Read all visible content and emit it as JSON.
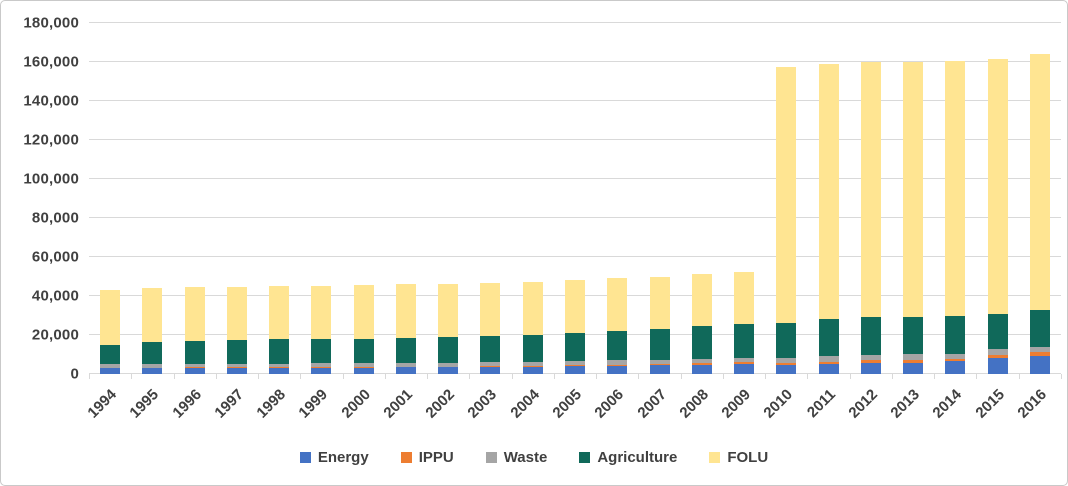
{
  "chart_data": {
    "type": "bar",
    "stacked": true,
    "title": "",
    "xlabel": "",
    "ylabel": "",
    "ylim": [
      0,
      180000
    ],
    "ytick_step": 20000,
    "ytick_labels": [
      "0",
      "20,000",
      "40,000",
      "60,000",
      "80,000",
      "100,000",
      "120,000",
      "140,000",
      "160,000",
      "180,000"
    ],
    "grid": "horizontal",
    "legend_position": "bottom",
    "categories": [
      "1994",
      "1995",
      "1996",
      "1997",
      "1998",
      "1999",
      "2000",
      "2001",
      "2002",
      "2003",
      "2004",
      "2005",
      "2006",
      "2007",
      "2008",
      "2009",
      "2010",
      "2011",
      "2012",
      "2013",
      "2014",
      "2015",
      "2016"
    ],
    "series": [
      {
        "name": "Energy",
        "color": "#4472C4",
        "values": [
          3100,
          3100,
          3100,
          3200,
          3200,
          3200,
          3300,
          3400,
          3400,
          3500,
          3600,
          3900,
          4100,
          4600,
          4600,
          5000,
          4500,
          5000,
          5900,
          5800,
          6600,
          8000,
          9200
        ]
      },
      {
        "name": "IPPU",
        "color": "#ED7D31",
        "values": [
          200,
          200,
          250,
          250,
          300,
          300,
          300,
          350,
          400,
          400,
          450,
          500,
          600,
          700,
          1000,
          1000,
          1000,
          1200,
          1300,
          1400,
          1200,
          1700,
          2200
        ]
      },
      {
        "name": "Waste",
        "color": "#A5A5A5",
        "values": [
          1700,
          1750,
          1800,
          1800,
          1850,
          1900,
          1900,
          1950,
          2000,
          2100,
          2250,
          2300,
          2300,
          2100,
          2100,
          2350,
          2900,
          3000,
          2600,
          2900,
          2700,
          3000,
          2400
        ]
      },
      {
        "name": "Agriculture",
        "color": "#10695A",
        "values": [
          10000,
          11600,
          12000,
          12200,
          12400,
          12500,
          12600,
          12700,
          13000,
          13700,
          13600,
          14400,
          15100,
          15900,
          16800,
          17350,
          17900,
          18800,
          19300,
          19200,
          19200,
          17900,
          18900
        ]
      },
      {
        "name": "FOLU",
        "color": "#FFE592",
        "values": [
          28100,
          27700,
          27500,
          27400,
          27300,
          27400,
          27500,
          27700,
          27600,
          27000,
          27200,
          27100,
          27000,
          26700,
          26700,
          26700,
          131400,
          130800,
          131000,
          130900,
          130600,
          131100,
          131500
        ]
      }
    ],
    "colors": {
      "grid": "#d9d9d9",
      "axis_text": "#404040",
      "background": "#ffffff"
    }
  }
}
